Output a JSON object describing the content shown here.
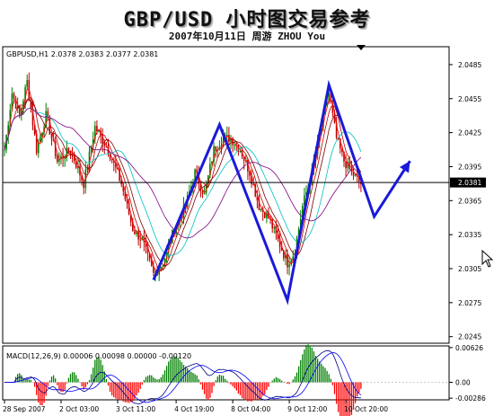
{
  "header": {
    "title": "GBP/USD 小时图交易参考",
    "subtitle": "2007年10月11日   周游 ZHOU You"
  },
  "chart_data": [
    {
      "type": "candlestick",
      "info_label": "GBPUSD,H1  2.0378 2.0383 2.0377 2.0381",
      "symbol": "GBPUSD",
      "timeframe": "H1",
      "ohlc": {
        "open": 2.0378,
        "high": 2.0383,
        "low": 2.0377,
        "close": 2.0381
      },
      "current_price_label": "2.0381",
      "current_price": 2.0381,
      "ylim": [
        2.024,
        2.05
      ],
      "y_ticks": [
        {
          "value": 2.0485,
          "label": "2.0485"
        },
        {
          "value": 2.0455,
          "label": "2.0455"
        },
        {
          "value": 2.0425,
          "label": "2.0425"
        },
        {
          "value": 2.0395,
          "label": "2.0395"
        },
        {
          "value": 2.0365,
          "label": "2.0365"
        },
        {
          "value": 2.0335,
          "label": "2.0335"
        },
        {
          "value": 2.0305,
          "label": "2.0305"
        },
        {
          "value": 2.0275,
          "label": "2.0275"
        },
        {
          "value": 2.0245,
          "label": "2.0245"
        }
      ],
      "n_bars": 190,
      "x_labels": [
        {
          "bar": 0,
          "label": "28 Sep 2007"
        },
        {
          "bar": 30,
          "label": "2 Oct 03:00"
        },
        {
          "bar": 60,
          "label": "3 Oct 11:00"
        },
        {
          "bar": 91,
          "label": "4 Oct 19:00"
        },
        {
          "bar": 121,
          "label": "8 Oct 04:00"
        },
        {
          "bar": 151,
          "label": "9 Oct 12:00"
        },
        {
          "bar": 181,
          "label": "10 Oct 20:00"
        }
      ],
      "guide_path": [
        {
          "bar": 79,
          "price": 2.0295
        },
        {
          "bar": 114,
          "price": 2.0432
        },
        {
          "bar": 150,
          "price": 2.0277
        },
        {
          "bar": 172,
          "price": 2.0467
        },
        {
          "bar": 196,
          "price": 2.0351
        },
        {
          "bar": 215,
          "price": 2.04
        }
      ],
      "series": [
        {
          "name": "price",
          "anchors": [
            [
              0,
              2.041
            ],
            [
              4,
              2.046
            ],
            [
              8,
              2.044
            ],
            [
              12,
              2.047
            ],
            [
              17,
              2.041
            ],
            [
              22,
              2.044
            ],
            [
              28,
              2.04
            ],
            [
              35,
              2.041
            ],
            [
              42,
              2.038
            ],
            [
              48,
              2.043
            ],
            [
              55,
              2.041
            ],
            [
              62,
              2.038
            ],
            [
              68,
              2.034
            ],
            [
              73,
              2.033
            ],
            [
              79,
              2.03
            ],
            [
              84,
              2.031
            ],
            [
              90,
              2.034
            ],
            [
              96,
              2.036
            ],
            [
              101,
              2.039
            ],
            [
              106,
              2.037
            ],
            [
              111,
              2.041
            ],
            [
              116,
              2.042
            ],
            [
              120,
              2.042
            ],
            [
              125,
              2.041
            ],
            [
              130,
              2.039
            ],
            [
              135,
              2.036
            ],
            [
              140,
              2.035
            ],
            [
              145,
              2.033
            ],
            [
              150,
              2.031
            ],
            [
              154,
              2.032
            ],
            [
              158,
              2.036
            ],
            [
              163,
              2.039
            ],
            [
              168,
              2.043
            ],
            [
              172,
              2.046
            ],
            [
              176,
              2.042
            ],
            [
              180,
              2.04
            ],
            [
              184,
              2.039
            ],
            [
              189,
              2.038
            ]
          ]
        }
      ]
    },
    {
      "type": "histogram",
      "indicator": "MACD",
      "info_label": "MACD(12,26,9) 0.00006 0.00098 0.00000 -0.00120",
      "params": [
        12,
        26,
        9
      ],
      "values": [
        6e-05,
        0.00098,
        0.0,
        -0.0012
      ],
      "ylim": [
        -0.003,
        0.0064
      ],
      "y_ticks": [
        {
          "value": 0.00626,
          "label": "0.00626"
        },
        {
          "value": 0.0,
          "label": "0.00"
        },
        {
          "value": -0.00286,
          "label": "-0.00286"
        }
      ],
      "series": [
        {
          "name": "MACD",
          "color": "#000080"
        },
        {
          "name": "signal",
          "color": "#0000ff"
        }
      ]
    }
  ],
  "colors": {
    "background": "#ffffff",
    "bull_candle": "#008000",
    "bear_candle": "#c00000",
    "guide_line": "#1a1ad9",
    "ma_colors": [
      "#ff0000",
      "#c00000",
      "#800000",
      "#00c0c0",
      "#800080"
    ],
    "macd_up": "#008000",
    "macd_down": "#ff0000"
  },
  "ui": {
    "mouse_cursor": "arrow-cursor-icon"
  }
}
